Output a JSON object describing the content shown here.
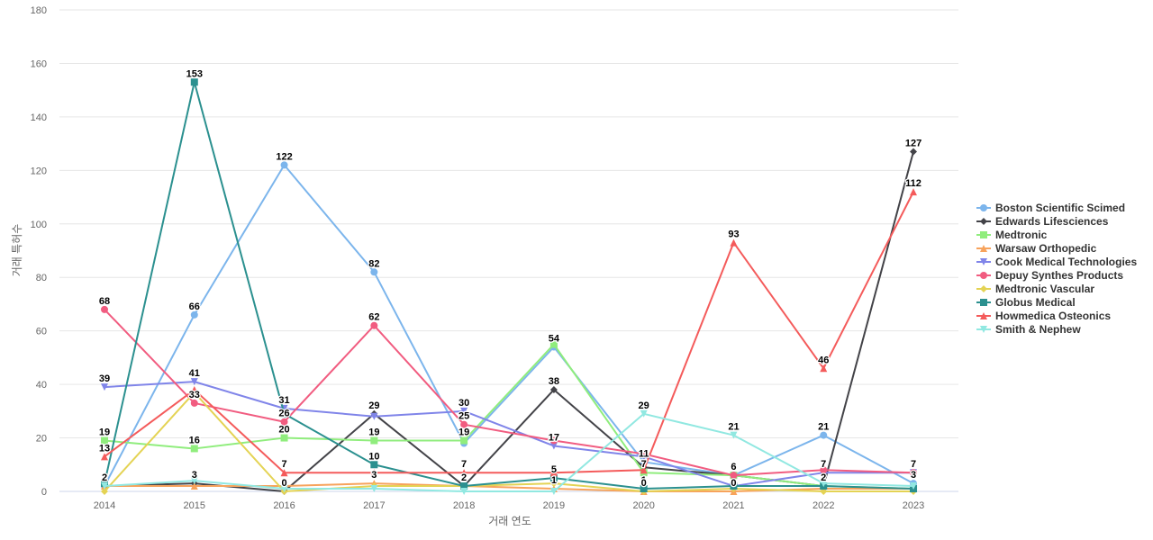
{
  "chart_data": {
    "type": "line",
    "xlabel": "거래 연도",
    "ylabel": "거래 특허수",
    "ylim": [
      0,
      180
    ],
    "yticks": [
      0,
      20,
      40,
      60,
      80,
      100,
      120,
      140,
      160,
      180
    ],
    "categories": [
      "2014",
      "2015",
      "2016",
      "2017",
      "2018",
      "2019",
      "2020",
      "2021",
      "2022",
      "2023"
    ],
    "grid": true,
    "legend_position": "right",
    "series": [
      {
        "name": "Boston Scientific Scimed",
        "color": "#7cb5ec",
        "marker": "circle",
        "values": [
          2,
          66,
          122,
          82,
          18,
          54,
          11,
          6,
          21,
          3
        ],
        "labels": [
          false,
          true,
          true,
          true,
          false,
          true,
          false,
          false,
          true,
          false
        ]
      },
      {
        "name": "Edwards Lifesciences",
        "color": "#434348",
        "marker": "diamond",
        "values": [
          2,
          3,
          0,
          29,
          2,
          38,
          9,
          6,
          2,
          127
        ],
        "labels": [
          false,
          false,
          true,
          true,
          true,
          true,
          false,
          false,
          true,
          true
        ]
      },
      {
        "name": "Medtronic",
        "color": "#90ed7d",
        "marker": "square",
        "values": [
          19,
          16,
          20,
          19,
          19,
          55,
          7,
          6,
          2,
          1
        ],
        "labels": [
          true,
          true,
          true,
          true,
          true,
          false,
          true,
          false,
          false,
          false
        ]
      },
      {
        "name": "Warsaw Orthopedic",
        "color": "#f7a35c",
        "marker": "triangle",
        "values": [
          2,
          2,
          2,
          3,
          2,
          1,
          0,
          0,
          1,
          1
        ],
        "labels": [
          false,
          false,
          false,
          false,
          false,
          false,
          false,
          false,
          false,
          false
        ]
      },
      {
        "name": "Cook Medical Technologies",
        "color": "#8085e9",
        "marker": "triangle-down",
        "values": [
          39,
          41,
          31,
          28,
          30,
          17,
          13,
          2,
          7,
          7
        ],
        "labels": [
          true,
          true,
          true,
          false,
          true,
          true,
          false,
          false,
          true,
          true
        ]
      },
      {
        "name": "Depuy Synthes Products",
        "color": "#f15c80",
        "marker": "circle",
        "values": [
          68,
          33,
          26,
          62,
          25,
          19,
          14,
          6,
          8,
          7
        ],
        "labels": [
          true,
          true,
          true,
          true,
          true,
          false,
          false,
          false,
          false,
          false
        ]
      },
      {
        "name": "Medtronic Vascular",
        "color": "#e4d354",
        "marker": "diamond",
        "values": [
          0,
          37,
          0,
          2,
          2,
          3,
          0,
          1,
          0,
          0
        ],
        "labels": [
          false,
          false,
          false,
          false,
          false,
          false,
          false,
          false,
          false,
          false
        ]
      },
      {
        "name": "Globus Medical",
        "color": "#2b908f",
        "marker": "square",
        "values": [
          3,
          153,
          29,
          10,
          2,
          5,
          1,
          2,
          2,
          1
        ],
        "labels": [
          false,
          true,
          false,
          true,
          false,
          true,
          true,
          false,
          false,
          false
        ]
      },
      {
        "name": "Howmedica Osteonics",
        "color": "#f45b5b",
        "marker": "triangle",
        "values": [
          13,
          38,
          7,
          7,
          7,
          7,
          8,
          93,
          46,
          112
        ],
        "labels": [
          true,
          false,
          true,
          false,
          true,
          false,
          false,
          true,
          true,
          true
        ]
      },
      {
        "name": "Smith & Nephew",
        "color": "#91e8e1",
        "marker": "triangle-down",
        "values": [
          2,
          4,
          1,
          1,
          0,
          0,
          29,
          21,
          3,
          2
        ],
        "labels": [
          false,
          false,
          false,
          false,
          false,
          false,
          true,
          true,
          false,
          false
        ]
      }
    ],
    "extra_labels": [
      {
        "category": "2014",
        "value": 2,
        "text": "2"
      },
      {
        "category": "2015",
        "value": 3,
        "text": "3"
      },
      {
        "category": "2017",
        "value": 3,
        "text": "3"
      },
      {
        "category": "2018",
        "value": 2,
        "text": "2"
      },
      {
        "category": "2019",
        "value": 1,
        "text": "1"
      },
      {
        "category": "2020",
        "value": 0,
        "text": "0"
      },
      {
        "category": "2021",
        "value": 0,
        "text": "0"
      },
      {
        "category": "2021",
        "value": 6,
        "text": "6"
      },
      {
        "category": "2023",
        "value": 3,
        "text": "3"
      },
      {
        "category": "2019",
        "value": 17,
        "text": "17"
      },
      {
        "category": "2019",
        "value": 54,
        "text": "54"
      },
      {
        "category": "2020",
        "value": 11,
        "text": "11"
      },
      {
        "category": "2020",
        "value": 7,
        "text": "7"
      }
    ]
  }
}
